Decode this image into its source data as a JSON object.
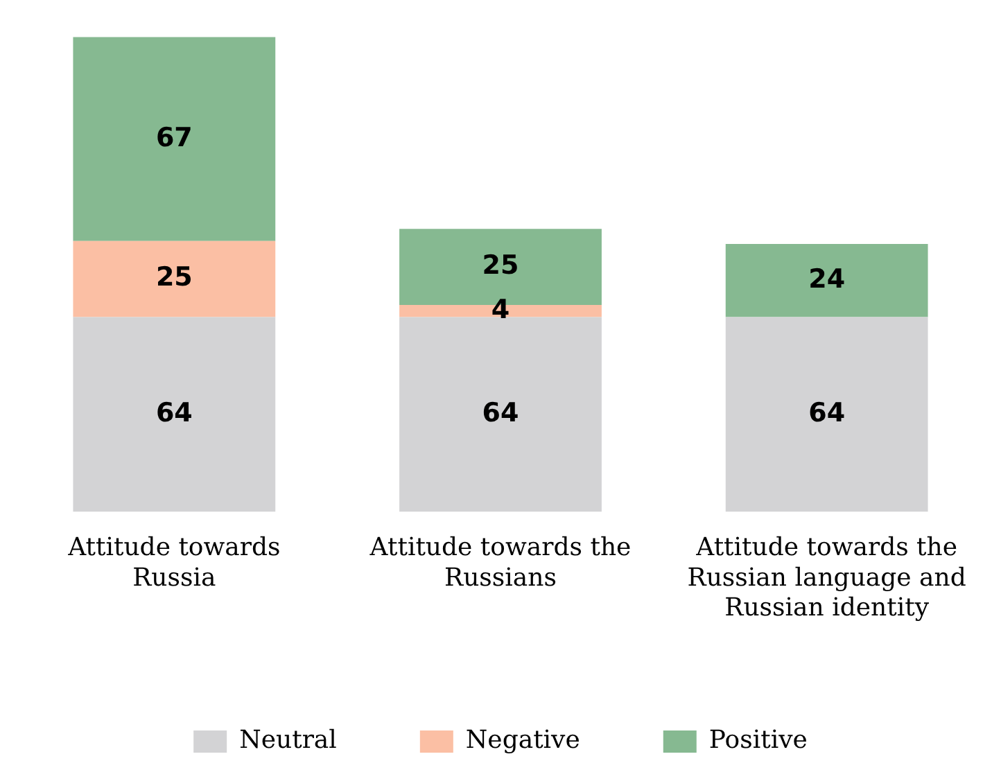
{
  "chart_data": {
    "type": "bar",
    "stacked": true,
    "data_labels": true,
    "legend": "bottom",
    "grid": false,
    "categories": [
      "Attitude towards Russia",
      "Attitude towards the Russians",
      "Attitude towards the Russian language and Russian identity"
    ],
    "series": [
      {
        "name": "Neutral",
        "color": "#d3d3d5",
        "values": [
          64,
          64,
          64
        ]
      },
      {
        "name": "Negative",
        "color": "#fbbfa4",
        "values": [
          25,
          4,
          null
        ]
      },
      {
        "name": "Positive",
        "color": "#86b991",
        "values": [
          67,
          25,
          24
        ]
      }
    ]
  }
}
